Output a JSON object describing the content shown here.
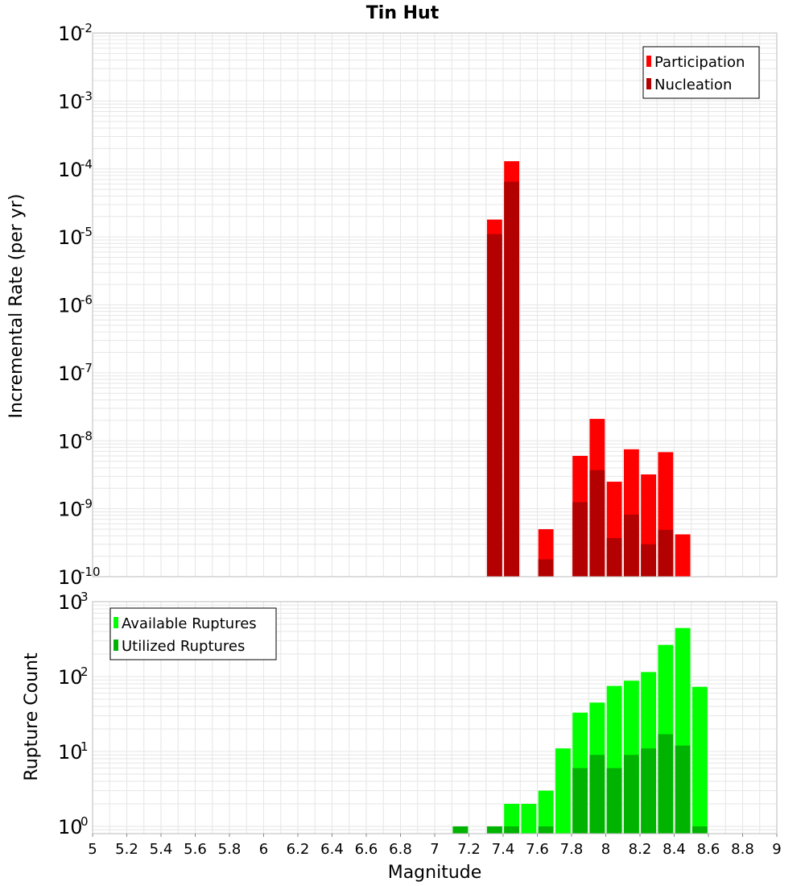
{
  "title": "Tin Hut",
  "colors": {
    "participation": "#ff0000",
    "nucleation": "#b30000",
    "available": "#00ff00",
    "utilized": "#00b300",
    "grid": "#e6e6e6",
    "frame": "#bbbbbb"
  },
  "chart_data": [
    {
      "type": "bar",
      "panel": "top",
      "title": "Tin Hut",
      "xlabel": "Magnitude",
      "ylabel": "Incremental Rate (per yr)",
      "yscale": "log",
      "ylim": [
        1e-10,
        0.01
      ],
      "xlim": [
        5,
        9
      ],
      "grid": true,
      "legend_position": "top-right",
      "y_ticks": [
        {
          "base": "10",
          "exp": "-10",
          "value": 1e-10
        },
        {
          "base": "10",
          "exp": "-9",
          "value": 1e-09
        },
        {
          "base": "10",
          "exp": "-8",
          "value": 1e-08
        },
        {
          "base": "10",
          "exp": "-7",
          "value": 1e-07
        },
        {
          "base": "10",
          "exp": "-6",
          "value": 1e-06
        },
        {
          "base": "10",
          "exp": "-5",
          "value": 1e-05
        },
        {
          "base": "10",
          "exp": "-4",
          "value": 0.0001
        },
        {
          "base": "10",
          "exp": "-3",
          "value": 0.001
        },
        {
          "base": "10",
          "exp": "-2",
          "value": 0.01
        }
      ],
      "series": [
        {
          "name": "Participation",
          "color": "#ff0000",
          "x": [
            7.35,
            7.45,
            7.65,
            7.85,
            7.95,
            8.05,
            8.15,
            8.25,
            8.35,
            8.45
          ],
          "values": [
            1.8e-05,
            0.00013,
            5e-10,
            6e-09,
            2.1e-08,
            2.5e-09,
            7.5e-09,
            3.2e-09,
            6.8e-09,
            4.2e-10
          ]
        },
        {
          "name": "Nucleation",
          "color": "#b30000",
          "x": [
            7.35,
            7.45,
            7.65,
            7.85,
            7.95,
            8.05,
            8.15,
            8.25,
            8.35
          ],
          "values": [
            1.1e-05,
            6.5e-05,
            1.8e-10,
            1.25e-09,
            3.7e-09,
            3.7e-10,
            8.2e-10,
            3e-10,
            4.9e-10
          ]
        }
      ]
    },
    {
      "type": "bar",
      "panel": "bottom",
      "xlabel": "Magnitude",
      "ylabel": "Rupture Count",
      "yscale": "log",
      "ylim": [
        0.8,
        1000
      ],
      "xlim": [
        5,
        9
      ],
      "grid": true,
      "legend_position": "top-left",
      "y_ticks": [
        {
          "base": "10",
          "exp": "0",
          "value": 1
        },
        {
          "base": "10",
          "exp": "1",
          "value": 10
        },
        {
          "base": "10",
          "exp": "2",
          "value": 100
        },
        {
          "base": "10",
          "exp": "3",
          "value": 1000
        }
      ],
      "x_ticks": [
        "5",
        "5.2",
        "5.4",
        "5.6",
        "5.8",
        "6",
        "6.2",
        "6.4",
        "6.6",
        "6.8",
        "7",
        "7.2",
        "7.4",
        "7.6",
        "7.8",
        "8",
        "8.2",
        "8.4",
        "8.6",
        "8.8",
        "9"
      ],
      "series": [
        {
          "name": "Available Ruptures",
          "color": "#00ff00",
          "x": [
            7.15,
            7.35,
            7.45,
            7.55,
            7.65,
            7.75,
            7.85,
            7.95,
            8.05,
            8.15,
            8.25,
            8.35,
            8.45,
            8.55
          ],
          "values": [
            1,
            1,
            2,
            2,
            3,
            11,
            33,
            45,
            75,
            88,
            115,
            265,
            445,
            73
          ]
        },
        {
          "name": "Utilized Ruptures",
          "color": "#00b300",
          "x": [
            7.15,
            7.35,
            7.45,
            7.65,
            7.85,
            7.95,
            8.05,
            8.15,
            8.25,
            8.35,
            8.45,
            8.55
          ],
          "values": [
            1,
            1,
            1,
            1,
            6,
            9,
            6,
            9,
            11,
            17,
            12,
            1
          ]
        }
      ]
    }
  ]
}
